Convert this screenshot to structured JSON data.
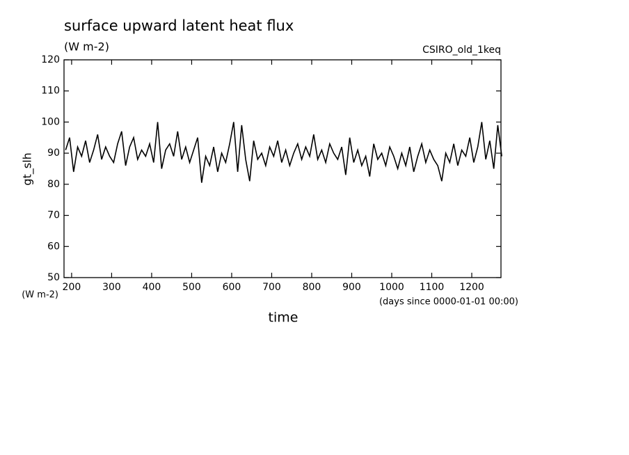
{
  "chart_data": {
    "type": "line",
    "title": "surface upward latent heat flux",
    "subtitle": "(W m-2)",
    "annotation": "CSIRO_old_1keq",
    "ylabel": "gt_slh",
    "yunits": "(W m-2)",
    "xlabel": "time",
    "xunits": "(days since 0000-01-01 00:00)",
    "xlim": [
      181,
      1273
    ],
    "ylim": [
      50,
      120
    ],
    "xticks": [
      200,
      300,
      400,
      500,
      600,
      700,
      800,
      900,
      1000,
      1100,
      1200
    ],
    "yticks": [
      50,
      60,
      70,
      80,
      90,
      100,
      110,
      120
    ],
    "x": [
      185,
      195,
      205,
      215,
      225,
      235,
      245,
      255,
      265,
      275,
      285,
      295,
      305,
      315,
      325,
      335,
      345,
      355,
      365,
      375,
      385,
      395,
      405,
      415,
      425,
      435,
      445,
      455,
      465,
      475,
      485,
      495,
      505,
      515,
      525,
      535,
      545,
      555,
      565,
      575,
      585,
      595,
      605,
      615,
      625,
      635,
      645,
      655,
      665,
      675,
      685,
      695,
      705,
      715,
      725,
      735,
      745,
      755,
      765,
      775,
      785,
      795,
      805,
      815,
      825,
      835,
      845,
      855,
      865,
      875,
      885,
      895,
      905,
      915,
      925,
      935,
      945,
      955,
      965,
      975,
      985,
      995,
      1005,
      1015,
      1025,
      1035,
      1045,
      1055,
      1065,
      1075,
      1085,
      1095,
      1105,
      1115,
      1125,
      1135,
      1145,
      1155,
      1165,
      1175,
      1185,
      1195,
      1205,
      1215,
      1225,
      1235,
      1245,
      1255,
      1265,
      1275
    ],
    "series": [
      {
        "color": "#000000",
        "values": [
          91,
          95,
          84,
          92,
          89,
          94,
          87,
          91,
          96,
          88,
          92,
          89,
          87,
          93,
          97,
          86,
          92,
          95,
          88,
          91,
          89,
          93,
          87,
          100,
          85,
          91,
          93,
          89,
          97,
          88,
          92,
          87,
          91,
          95,
          80.5,
          89,
          86,
          92,
          84,
          90,
          87,
          93,
          100,
          84,
          99,
          88,
          81,
          94,
          88,
          90,
          86,
          92,
          89,
          94,
          87,
          91,
          86,
          90,
          93,
          88,
          92,
          89,
          96,
          88,
          91,
          87,
          93,
          90,
          88,
          92,
          83,
          95,
          87,
          91,
          86,
          89,
          82.5,
          93,
          88,
          90,
          86,
          92,
          89,
          85,
          90,
          86,
          92,
          84,
          89,
          93,
          87,
          91,
          88,
          86,
          81,
          90,
          87,
          93,
          86,
          91,
          89,
          95,
          87,
          92,
          100,
          88,
          94,
          85,
          99,
          89
        ]
      }
    ]
  }
}
